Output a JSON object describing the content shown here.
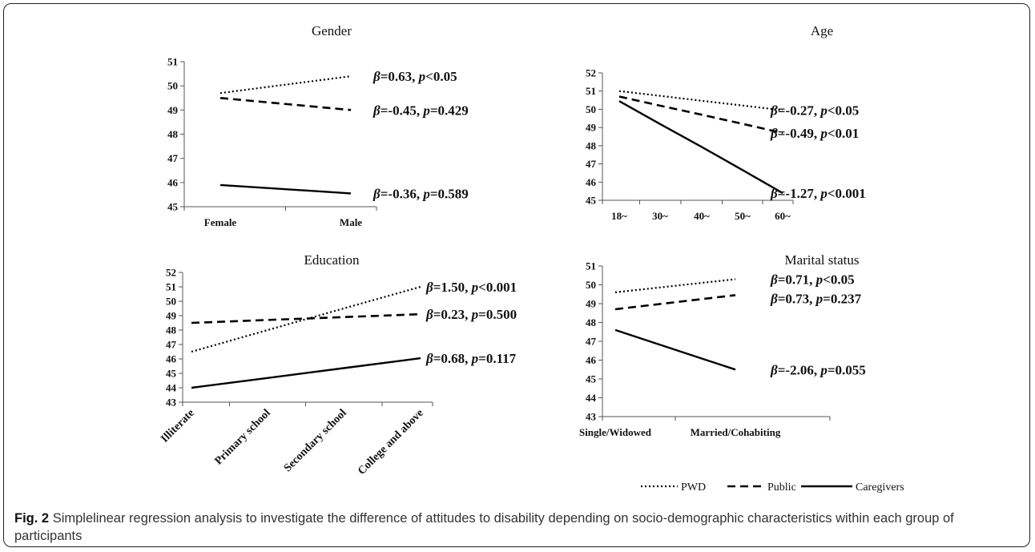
{
  "figure": {
    "caption_label": "Fig. 2",
    "caption_text": "Simplelinear regression analysis to investigate the difference of attitudes to disability depending on socio-demographic characteristics within each group of participants"
  },
  "legend": [
    {
      "name": "PWD",
      "style": "dotted"
    },
    {
      "name": "Public",
      "style": "dashed"
    },
    {
      "name": "Caregivers",
      "style": "solid"
    }
  ],
  "colors": {
    "line": "#000000",
    "axis": "#555555",
    "caption": "#333333"
  },
  "chart_data": [
    {
      "id": "gender",
      "type": "line",
      "title": "Gender",
      "categories": [
        "Female",
        "Male"
      ],
      "ylim": [
        45,
        51
      ],
      "yticks": [
        45,
        46,
        47,
        48,
        49,
        50,
        51
      ],
      "grid": false,
      "series": [
        {
          "name": "PWD",
          "style": "dotted",
          "values": [
            49.7,
            50.4
          ],
          "annotation": {
            "beta": "=0.63, ",
            "p": "<0.05"
          }
        },
        {
          "name": "Public",
          "style": "dashed",
          "values": [
            49.5,
            49.0
          ],
          "annotation": {
            "beta": "=-0.45, ",
            "p": "=0.429"
          }
        },
        {
          "name": "Caregivers",
          "style": "solid",
          "values": [
            45.9,
            45.55
          ],
          "annotation": {
            "beta": "=-0.36, ",
            "p": "=0.589"
          }
        }
      ]
    },
    {
      "id": "age",
      "type": "line",
      "title": "Age",
      "categories": [
        "18~",
        "30~",
        "40~",
        "50~",
        "60~"
      ],
      "ylim": [
        45,
        52
      ],
      "yticks": [
        45,
        46,
        47,
        48,
        49,
        50,
        51,
        52
      ],
      "grid": false,
      "series": [
        {
          "name": "PWD",
          "style": "dotted",
          "values": [
            51.0,
            50.74,
            50.47,
            50.21,
            49.95
          ],
          "annotation": {
            "beta": "=-0.27, ",
            "p": "<0.05"
          }
        },
        {
          "name": "Public",
          "style": "dashed",
          "values": [
            50.7,
            50.2,
            49.7,
            49.2,
            48.7
          ],
          "annotation": {
            "beta": "=-0.49, ",
            "p": "<0.01"
          }
        },
        {
          "name": "Caregivers",
          "style": "solid",
          "values": [
            50.45,
            49.19,
            47.93,
            46.66,
            45.4
          ],
          "annotation": {
            "beta": "=-1.27, ",
            "p": "<0.001"
          }
        }
      ]
    },
    {
      "id": "education",
      "type": "line",
      "title": "Education",
      "categories": [
        "Illiterate",
        "Primary school",
        "Secondary school",
        "College and above"
      ],
      "ylim": [
        43,
        52
      ],
      "yticks": [
        43,
        44,
        45,
        46,
        47,
        48,
        49,
        50,
        51,
        52
      ],
      "grid": false,
      "series": [
        {
          "name": "PWD",
          "style": "dotted",
          "values": [
            46.5,
            48.0,
            49.5,
            51.0
          ],
          "annotation": {
            "beta": "=1.50, ",
            "p": "<0.001"
          }
        },
        {
          "name": "Public",
          "style": "dashed",
          "values": [
            48.5,
            48.7,
            48.9,
            49.1
          ],
          "annotation": {
            "beta": "=0.23, ",
            "p": "=0.500"
          }
        },
        {
          "name": "Caregivers",
          "style": "solid",
          "values": [
            44.0,
            44.68,
            45.36,
            46.05
          ],
          "annotation": {
            "beta": "=0.68, ",
            "p": "=0.117"
          }
        }
      ]
    },
    {
      "id": "marital",
      "type": "line",
      "title": "Marital status",
      "categories": [
        "Single/Widowed",
        "Married/Cohabiting"
      ],
      "ylim": [
        43,
        51
      ],
      "yticks": [
        43,
        44,
        45,
        46,
        47,
        48,
        49,
        50,
        51
      ],
      "grid": false,
      "series": [
        {
          "name": "PWD",
          "style": "dotted",
          "values": [
            49.6,
            50.3
          ],
          "annotation": {
            "beta": "=0.71, ",
            "p": "<0.05"
          }
        },
        {
          "name": "Public",
          "style": "dashed",
          "values": [
            48.7,
            49.45
          ],
          "annotation": {
            "beta": "=0.73, ",
            "p": "=0.237"
          }
        },
        {
          "name": "Caregivers",
          "style": "solid",
          "values": [
            47.6,
            45.5
          ],
          "annotation": {
            "beta": "=-2.06, ",
            "p": "=0.055"
          }
        }
      ]
    }
  ]
}
